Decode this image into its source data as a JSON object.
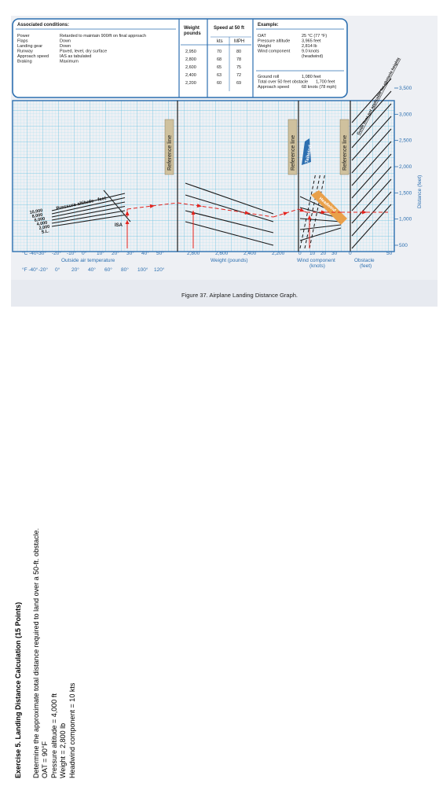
{
  "figure": {
    "caption": "Figure 37. Airplane Landing Distance Graph.",
    "conditions": {
      "title": "Associated conditions:",
      "rows": [
        {
          "label": "Power",
          "value": "Retarded to maintain 900/ft on final approach"
        },
        {
          "label": "Flaps",
          "value": "Down"
        },
        {
          "label": "Landing gear",
          "value": "Down"
        },
        {
          "label": "Runway",
          "value": "Paved, level, dry surface"
        },
        {
          "label": "Approach speed",
          "value": "IAS as tabulated"
        },
        {
          "label": "Braking",
          "value": "Maximum"
        }
      ]
    },
    "speed_table": {
      "weight_header": [
        "Weight",
        "pounds"
      ],
      "speed_header": "Speed at 50 ft",
      "unit_kts": "kts",
      "unit_mph": "MPH",
      "rows": [
        [
          "2,950",
          "70",
          "80"
        ],
        [
          "2,800",
          "68",
          "78"
        ],
        [
          "2,600",
          "65",
          "75"
        ],
        [
          "2,400",
          "63",
          "72"
        ],
        [
          "2,200",
          "60",
          "69"
        ]
      ]
    },
    "example": {
      "title": "Example:",
      "rows": [
        {
          "label": "OAT",
          "value": "25 °C (77 °F)"
        },
        {
          "label": "Pressure altitude",
          "value": "3,965 feet"
        },
        {
          "label": "Weight",
          "value": "2,814 lb"
        },
        {
          "label": "Wind component",
          "value": "9.0 knots"
        },
        {
          "label": "",
          "value": "(headwind)"
        }
      ],
      "results": [
        {
          "label": "Ground roll",
          "value": "1,080 feet"
        },
        {
          "label": "Total over 50 feet obstacle",
          "value": "1,700 feet"
        },
        {
          "label": "Approach speed",
          "value": "68 knots (78 mph)"
        }
      ]
    }
  },
  "chart_data": {
    "type": "line",
    "title": "Figure 37. Airplane Landing Distance Graph.",
    "panels": [
      {
        "name": "Outside air temperature",
        "xlabel": "Outside air temperature",
        "x_ticks_c": [
          "°C -40°",
          "-30°",
          "-20°",
          "-10°",
          "0°",
          "10°",
          "20°",
          "30°",
          "40°",
          "50°"
        ],
        "x_ticks_f": [
          "°F -40°",
          "-20°",
          "0°",
          "20°",
          "40°",
          "60°",
          "80°",
          "100°",
          "120°"
        ],
        "xlim": [
          -40,
          50
        ],
        "curve_label": "Pressure altitude - feet",
        "altitudes": [
          "10,000",
          "8,000",
          "6,000",
          "4,000",
          "2,000",
          "S.L."
        ],
        "isa_label": "ISA"
      },
      {
        "name": "Weight",
        "xlabel": "Weight (pounds)",
        "x_ticks": [
          "2,800",
          "2,600",
          "2,400",
          "2,200"
        ],
        "xlim": [
          2950,
          2200
        ],
        "reference_label": "Reference line"
      },
      {
        "name": "Wind component",
        "xlabel": "Wind component",
        "xlabel2": "(knots)",
        "x_ticks": [
          "0",
          "10",
          "20",
          "30"
        ],
        "xlim": [
          0,
          30
        ],
        "reference_label": "Reference line",
        "labels": [
          "Tailwind",
          "Headwind"
        ]
      },
      {
        "name": "Obstacle",
        "xlabel": "Obstacle",
        "xlabel2": "(feet)",
        "x_ticks": [
          "0",
          "50"
        ],
        "xlim": [
          0,
          50
        ],
        "reference_label": "Reference line",
        "note": "Guide lines not applicable for obstacle heights"
      }
    ],
    "y_axis": {
      "label": "Distance (feet)",
      "ticks": [
        "500",
        "1,000",
        "1,500",
        "2,000",
        "2,500",
        "3,000",
        "3,500"
      ],
      "values": [
        500,
        1000,
        1500,
        2000,
        2500,
        3000,
        3500
      ],
      "ylim": [
        500,
        3500
      ]
    },
    "example_path": {
      "oat_c": 25,
      "pressure_altitude_ft": 3965,
      "weight_lb": 2814,
      "headwind_kts": 9,
      "ground_roll_ft": 1080,
      "total_distance_ft": 1700
    },
    "colors": {
      "grid": "#8fd3ea",
      "frame": "#2c6fb0",
      "arrow": "#e4231d",
      "reference": "#cfc19e",
      "headwind": "#e9a04a",
      "tailwind": "#2c6fb0"
    }
  },
  "exercise": {
    "title": "Exercise 5. Landing Distance Calculation (15 Points)",
    "lines": [
      "Determine the approximate total distance required to land over a 50-ft. obstacle.",
      "OAT = 90°F",
      "Pressure altitude = 4,000 ft",
      "Weight = 2,800 lb",
      "Headwind component = 10 kts"
    ]
  }
}
